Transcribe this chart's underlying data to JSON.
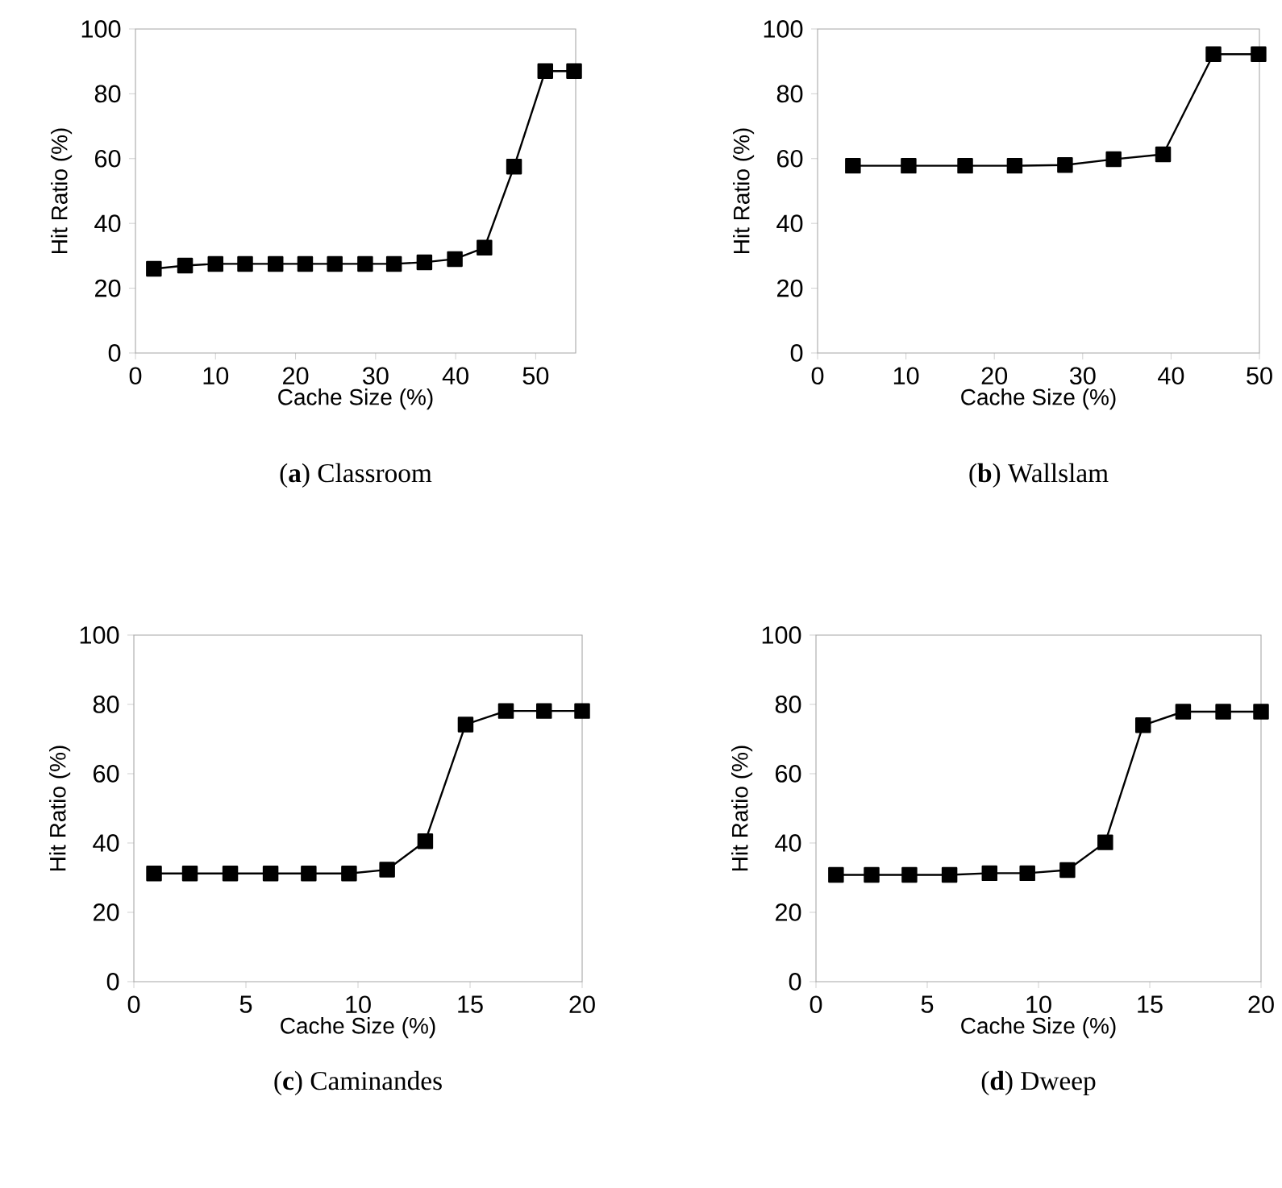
{
  "chart_data": [
    {
      "type": "line",
      "title": "(**a**) Classroom",
      "xlabel": "Cache Size (%)",
      "ylabel": "Hit Ratio (%)",
      "marker": "square",
      "line_style": "solid",
      "grid": false,
      "xlim": [
        0,
        55
      ],
      "ylim": [
        0,
        100
      ],
      "xticks": [
        0,
        10,
        20,
        30,
        40,
        50
      ],
      "yticks": [
        0,
        20,
        40,
        60,
        80,
        100
      ],
      "series": [
        {
          "color": "#000000",
          "x": [
            2.3,
            6.2,
            10.0,
            13.7,
            17.5,
            21.2,
            24.9,
            28.7,
            32.3,
            36.1,
            39.9,
            43.6,
            47.3,
            51.2,
            54.8
          ],
          "values": [
            26,
            27,
            27.5,
            27.5,
            27.5,
            27.5,
            27.5,
            27.5,
            27.5,
            28,
            29,
            32.5,
            57.5,
            87,
            87
          ]
        }
      ]
    },
    {
      "type": "line",
      "title": "(**b**) Wallslam",
      "xlabel": "Cache Size (%)",
      "ylabel": "Hit Ratio (%)",
      "marker": "square",
      "line_style": "solid",
      "grid": false,
      "xlim": [
        0,
        50
      ],
      "ylim": [
        0,
        100
      ],
      "xticks": [
        0,
        10,
        20,
        30,
        40,
        50
      ],
      "yticks": [
        0,
        20,
        40,
        60,
        80,
        100
      ],
      "series": [
        {
          "color": "#000000",
          "x": [
            4.0,
            10.3,
            16.7,
            22.3,
            28.0,
            33.5,
            39.1,
            44.8,
            49.9
          ],
          "values": [
            57.8,
            57.8,
            57.8,
            57.8,
            58,
            59.8,
            61.3,
            92.2,
            92.2
          ]
        }
      ]
    },
    {
      "type": "line",
      "title": "(**c**) Caminandes",
      "xlabel": "Cache Size (%)",
      "ylabel": "Hit Ratio (%)",
      "marker": "square",
      "line_style": "solid",
      "grid": false,
      "xlim": [
        0,
        20
      ],
      "ylim": [
        0,
        100
      ],
      "xticks": [
        0,
        5,
        10,
        15,
        20
      ],
      "yticks": [
        0,
        20,
        40,
        60,
        80,
        100
      ],
      "series": [
        {
          "color": "#000000",
          "x": [
            0.9,
            2.5,
            4.3,
            6.1,
            7.8,
            9.6,
            11.3,
            13.0,
            14.8,
            16.6,
            18.3,
            20.0
          ],
          "values": [
            31.2,
            31.2,
            31.2,
            31.2,
            31.2,
            31.2,
            32.3,
            40.5,
            74.2,
            78.1,
            78.1,
            78.1
          ]
        }
      ]
    },
    {
      "type": "line",
      "title": "(**d**) Dweep",
      "xlabel": "Cache Size (%)",
      "ylabel": "Hit Ratio (%)",
      "marker": "square",
      "line_style": "solid",
      "grid": false,
      "xlim": [
        0,
        20
      ],
      "ylim": [
        0,
        100
      ],
      "xticks": [
        0,
        5,
        10,
        15,
        20
      ],
      "yticks": [
        0,
        20,
        40,
        60,
        80,
        100
      ],
      "series": [
        {
          "color": "#000000",
          "x": [
            0.9,
            2.5,
            4.2,
            6.0,
            7.8,
            9.5,
            11.3,
            13.0,
            14.7,
            16.5,
            18.3,
            20.0
          ],
          "values": [
            30.8,
            30.8,
            30.8,
            30.8,
            31.3,
            31.3,
            32.2,
            40.2,
            74,
            77.9,
            77.9,
            77.9
          ]
        }
      ]
    }
  ]
}
